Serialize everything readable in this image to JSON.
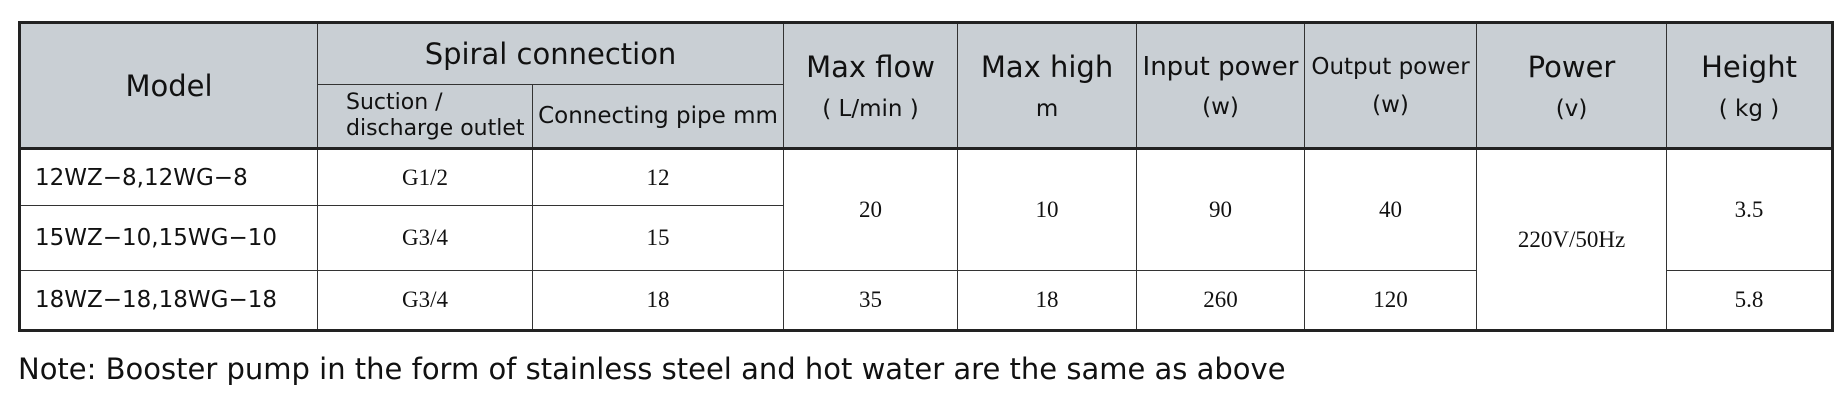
{
  "table": {
    "header": {
      "model": "Model",
      "spiral_connection": "Spiral connection",
      "suction_outlet": [
        "Suction /",
        "discharge outlet"
      ],
      "connecting_pipe": "Connecting pipe  mm",
      "max_flow": [
        "Max flow",
        "( L/min  )"
      ],
      "max_high": [
        "Max high",
        "m"
      ],
      "input_power": [
        "Input power",
        "(w)"
      ],
      "output_power": [
        "Output power",
        "(w)"
      ],
      "power": [
        "Power",
        "(v)"
      ],
      "height": [
        "Height",
        "( kg )"
      ]
    },
    "rows": [
      [
        "12WZ−8,12WG−8",
        "G1/2",
        "12",
        "20",
        "10",
        "90",
        "40",
        "220V/50Hz",
        "3.5"
      ],
      [
        "15WZ−10,15WG−10",
        "G3/4",
        "15"
      ],
      [
        "18WZ−18,18WG−18",
        "G3/4",
        "18",
        "35",
        "18",
        "260",
        "120",
        "5.8"
      ]
    ]
  },
  "note": "Note: Booster pump in the form of stainless steel and hot water are the same as above"
}
